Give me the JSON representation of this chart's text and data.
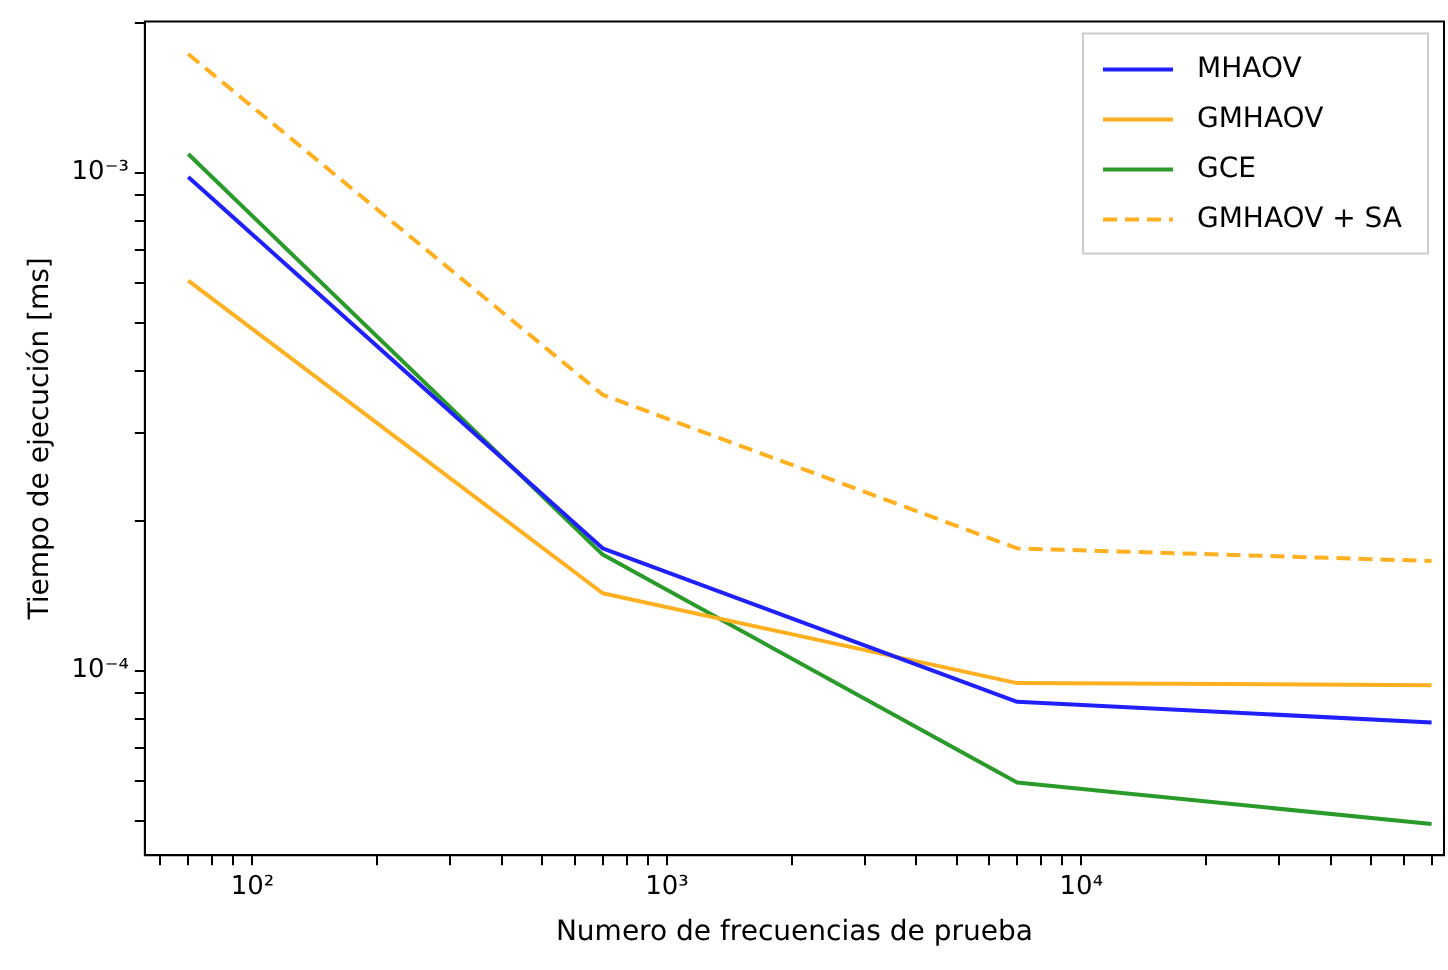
{
  "chart_data": {
    "type": "line",
    "xlabel": "Numero de frecuencias de prueba",
    "ylabel": "Tiempo de ejecución [ms]",
    "log": "xy",
    "grid": false,
    "legend": "top right",
    "marker": "none",
    "x": [
      70,
      700,
      7000,
      70000
    ],
    "xlim": [
      55,
      75000
    ],
    "xticks": [
      {
        "value": 60,
        "label": null
      },
      {
        "value": 70,
        "label": null
      },
      {
        "value": 80,
        "label": null
      },
      {
        "value": 90,
        "label": null
      },
      {
        "value": 100,
        "label": "10²"
      },
      {
        "value": 200,
        "label": null
      },
      {
        "value": 300,
        "label": null
      },
      {
        "value": 400,
        "label": null
      },
      {
        "value": 500,
        "label": null
      },
      {
        "value": 600,
        "label": null
      },
      {
        "value": 700,
        "label": null
      },
      {
        "value": 800,
        "label": null
      },
      {
        "value": 900,
        "label": null
      },
      {
        "value": 1000,
        "label": "10³"
      },
      {
        "value": 2000,
        "label": null
      },
      {
        "value": 3000,
        "label": null
      },
      {
        "value": 4000,
        "label": null
      },
      {
        "value": 5000,
        "label": null
      },
      {
        "value": 6000,
        "label": null
      },
      {
        "value": 7000,
        "label": null
      },
      {
        "value": 8000,
        "label": null
      },
      {
        "value": 9000,
        "label": null
      },
      {
        "value": 10000,
        "label": "10⁴"
      },
      {
        "value": 20000,
        "label": null
      },
      {
        "value": 30000,
        "label": null
      },
      {
        "value": 40000,
        "label": null
      },
      {
        "value": 50000,
        "label": null
      },
      {
        "value": 60000,
        "label": null
      },
      {
        "value": 70000,
        "label": null
      }
    ],
    "ylim": [
      4.26e-05,
      0.00201
    ],
    "yticks": [
      {
        "value": 5e-05,
        "label": null
      },
      {
        "value": 6e-05,
        "label": null
      },
      {
        "value": 7e-05,
        "label": null
      },
      {
        "value": 8e-05,
        "label": null
      },
      {
        "value": 9e-05,
        "label": null
      },
      {
        "value": 0.0001,
        "label": "10⁻⁴"
      },
      {
        "value": 0.0002,
        "label": null
      },
      {
        "value": 0.0003,
        "label": null
      },
      {
        "value": 0.0004,
        "label": null
      },
      {
        "value": 0.0005,
        "label": null
      },
      {
        "value": 0.0006,
        "label": null
      },
      {
        "value": 0.0007,
        "label": null
      },
      {
        "value": 0.0008,
        "label": null
      },
      {
        "value": 0.0009,
        "label": null
      },
      {
        "value": 0.001,
        "label": "10⁻³"
      },
      {
        "value": 0.002,
        "label": null
      }
    ],
    "series": [
      {
        "name": "MHAOV",
        "color": "#2020ff",
        "values": [
          0.00098,
          0.000176,
          8.66e-05,
          7.87e-05
        ]
      },
      {
        "name": "GMHAOV",
        "color": "#ffb020",
        "values": [
          0.000607,
          0.000143,
          9.44e-05,
          9.35e-05
        ]
      },
      {
        "name": "GCE",
        "color": "#2a9a2a",
        "values": [
          0.00109,
          0.000171,
          5.96e-05,
          4.92e-05
        ]
      },
      {
        "name": "GMHAOV + SA",
        "color": "#ffb020",
        "line_style": "dashed",
        "values": [
          0.00173,
          0.000358,
          0.000176,
          0.000166
        ]
      }
    ]
  }
}
